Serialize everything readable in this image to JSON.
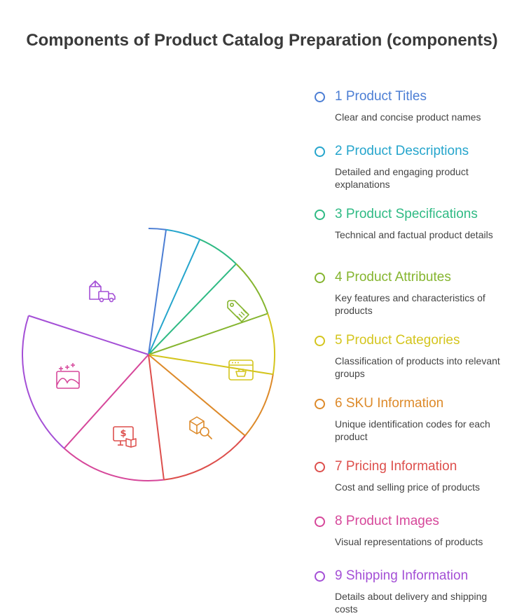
{
  "title": "Components of Product Catalog Preparation (components)",
  "items": [
    {
      "number": "1",
      "label": "Product Titles",
      "description": "Clear and concise product names",
      "color": "#4c7ed4",
      "icon": "none"
    },
    {
      "number": "2",
      "label": "Product Descriptions",
      "description": "Detailed and engaging product explanations",
      "color": "#25a5cc",
      "icon": "none"
    },
    {
      "number": "3",
      "label": "Product Specifications",
      "description": "Technical and factual product details",
      "color": "#2fba84",
      "icon": "none"
    },
    {
      "number": "4",
      "label": "Product Attributes",
      "description": "Key features and characteristics of products",
      "color": "#85b52f",
      "icon": "price-tag-icon"
    },
    {
      "number": "5",
      "label": "Product Categories",
      "description": "Classification of products into relevant groups",
      "color": "#d4c51e",
      "icon": "shop-window-icon"
    },
    {
      "number": "6",
      "label": "SKU Information",
      "description": "Unique identification codes for each product",
      "color": "#dd8a2a",
      "icon": "box-search-icon"
    },
    {
      "number": "7",
      "label": "Pricing Information",
      "description": "Cost and selling price of products",
      "color": "#dd4f4c",
      "icon": "price-monitor-book-icon"
    },
    {
      "number": "8",
      "label": "Product Images",
      "description": "Visual representations of products",
      "color": "#d6479a",
      "icon": "image-sparkle-icon"
    },
    {
      "number": "9",
      "label": "Shipping Information",
      "description": "Details about delivery and shipping costs",
      "color": "#a44fd6",
      "icon": "delivery-truck-icon"
    }
  ]
}
